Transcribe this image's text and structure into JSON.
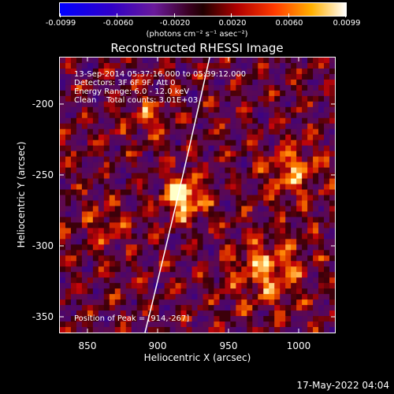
{
  "colorbar": {
    "tick_labels": [
      "-0.0099",
      "-0.0060",
      "-0.0020",
      "0.0020",
      "0.0060",
      "0.0099"
    ],
    "units_label": "(photons cm⁻² s⁻¹ asec⁻²)",
    "colors": [
      "#0000ff",
      "#5500aa",
      "#8a2c92",
      "#7a0000",
      "#cc1100",
      "#ff6600",
      "#ffcc00",
      "#ffffff"
    ]
  },
  "plot": {
    "title": "Reconstructed RHESSI Image",
    "info_lines": [
      "13-Sep-2014 05:37:16.000 to 05:39:12.000",
      "Detectors: 3F 6F 9F, Att 0",
      "Energy Range: 6.0 - 12.0 keV",
      "Clean    Total counts: 3.01E+03"
    ],
    "peak_label": "Position of Peak = [914,-267]",
    "xlabel": "Heliocentric X (arcsec)",
    "ylabel": "Heliocentric Y (arcsec)",
    "xticks": [
      "850",
      "900",
      "950",
      "1000"
    ],
    "yticks": [
      "-200",
      "-250",
      "-300",
      "-350"
    ],
    "xrange": [
      831,
      1026
    ],
    "yrange": [
      -174,
      -369
    ]
  },
  "timestamp": "17-May-2022 04:04"
}
